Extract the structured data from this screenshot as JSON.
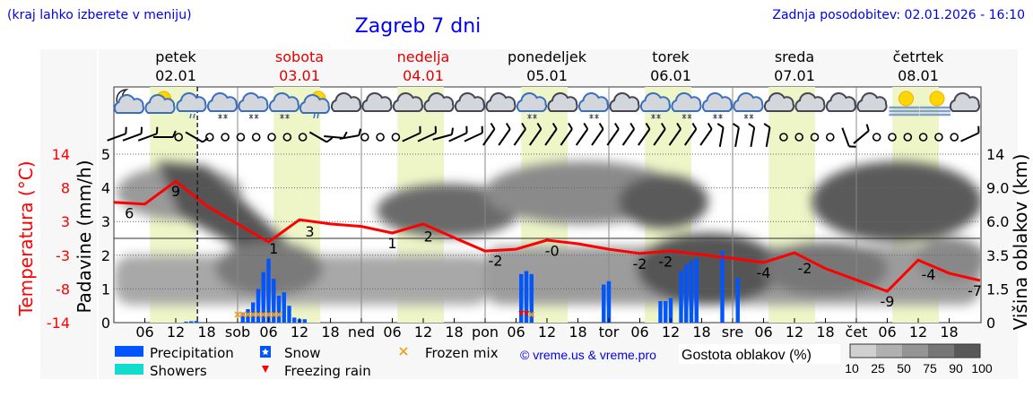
{
  "header": {
    "location_hint": "(kraj lahko izberete v meniju)",
    "title": "Zagreb 7 dni",
    "updated": "Zadnja posodobitev: 02.01.2026 - 16:10"
  },
  "days": [
    {
      "name": "petek",
      "date": "02.01",
      "color": "#000000"
    },
    {
      "name": "sobota",
      "date": "03.01",
      "color": "#e00000"
    },
    {
      "name": "nedelja",
      "date": "04.01",
      "color": "#e00000"
    },
    {
      "name": "ponedeljek",
      "date": "05.01",
      "color": "#000000"
    },
    {
      "name": "torek",
      "date": "06.01",
      "color": "#000000"
    },
    {
      "name": "sreda",
      "date": "07.01",
      "color": "#000000"
    },
    {
      "name": "četrtek",
      "date": "08.01",
      "color": "#000000"
    }
  ],
  "weather_icons": [
    "moon-cloud",
    "sun-cloud",
    "cloud-rain",
    "cloud-snow",
    "cloud-snow",
    "cloud-sleet",
    "sun-cloud-rain",
    "cloud",
    "cloud",
    "cloud",
    "cloud",
    "cloud",
    "cloud",
    "cloud-snow",
    "cloud",
    "cloud-snow",
    "cloud",
    "cloud-snow",
    "cloud-snow",
    "cloud-snow",
    "cloud-snow",
    "cloud",
    "cloud",
    "cloud",
    "cloud",
    "sun-fog",
    "sun-fog",
    "cloud"
  ],
  "wind": [
    -20,
    -20,
    -20,
    0,
    "calm",
    30,
    "calm",
    "calm",
    "calm",
    "calm",
    "calm",
    "calm",
    "calm",
    30,
    5,
    -10,
    "calm",
    "calm",
    "calm",
    -25,
    -25,
    -15,
    -25,
    -25,
    -55,
    -55,
    -55,
    -55,
    -55,
    -55,
    -55,
    -55,
    -55,
    -55,
    -55,
    -55,
    -55,
    -55,
    -55,
    -80,
    -80,
    -80,
    -80,
    "calm",
    "calm",
    "calm",
    "calm",
    70,
    -40,
    "calm",
    "calm",
    "calm",
    "calm",
    "calm",
    "calm",
    -25
  ],
  "chart_data": {
    "type": "line+bar",
    "x_axis": {
      "tick_labels": [
        "06",
        "12",
        "18",
        "sob",
        "06",
        "12",
        "18",
        "ned",
        "06",
        "12",
        "18",
        "pon",
        "06",
        "12",
        "18",
        "tor",
        "06",
        "12",
        "18",
        "sre",
        "06",
        "12",
        "18",
        "čet",
        "06",
        "12",
        "18"
      ]
    },
    "left_axis_temp": {
      "label": "Temperatura (°C)",
      "ticks": [
        "14",
        "8",
        "3",
        "-3",
        "-8",
        "-14"
      ],
      "range": [
        -14,
        14
      ]
    },
    "left_axis_precip": {
      "label": "Padavine (mm/h)",
      "ticks": [
        "0",
        "1",
        "2",
        "3",
        "4",
        "5"
      ],
      "range": [
        0,
        5
      ]
    },
    "right_axis_cloud": {
      "label": "Višina oblakov (km)",
      "ticks": [
        "0",
        "1.5",
        "3.5",
        "6.0",
        "9.0",
        "14"
      ]
    },
    "now_hour": 16.2,
    "daylight_hours": [
      7,
      16
    ],
    "temperature": {
      "step_hours": 6,
      "values": [
        6,
        5.7,
        9.5,
        5.4,
        2.4,
        -0.6,
        3.1,
        2.4,
        2,
        0.9,
        2.4,
        0.1,
        -2.1,
        -1.8,
        -0.3,
        -0.9,
        -1.8,
        -2.5,
        -2.1,
        -2.7,
        -3.3,
        -4,
        -2.4,
        -5,
        -6.9,
        -8.8,
        -3.6,
        -5.8,
        -7
      ]
    },
    "temperature_labels": [
      {
        "h": 3,
        "text": "6"
      },
      {
        "h": 12,
        "text": "9"
      },
      {
        "h": 31,
        "text": "1"
      },
      {
        "h": 38,
        "text": "3"
      },
      {
        "h": 54,
        "text": "1"
      },
      {
        "h": 61,
        "text": "2"
      },
      {
        "h": 74,
        "text": "-2"
      },
      {
        "h": 85,
        "text": "-0"
      },
      {
        "h": 102,
        "text": "-2"
      },
      {
        "h": 107,
        "text": "-2"
      },
      {
        "h": 126,
        "text": "-4"
      },
      {
        "h": 134,
        "text": "-2"
      },
      {
        "h": 150,
        "text": "-9"
      },
      {
        "h": 158,
        "text": "-4"
      },
      {
        "h": 168,
        "text": "-7"
      }
    ],
    "precipitation": [
      {
        "h": 14,
        "v": 0.03
      },
      {
        "h": 15,
        "v": 0.04
      },
      {
        "h": 16,
        "v": 0.05
      },
      {
        "h": 25,
        "v": 0.3
      },
      {
        "h": 26,
        "v": 0.4
      },
      {
        "h": 27,
        "v": 0.6
      },
      {
        "h": 28,
        "v": 1.0
      },
      {
        "h": 29,
        "v": 1.5
      },
      {
        "h": 30,
        "v": 1.9
      },
      {
        "h": 31,
        "v": 1.3
      },
      {
        "h": 32,
        "v": 0.8
      },
      {
        "h": 33,
        "v": 0.9
      },
      {
        "h": 34,
        "v": 0.5
      },
      {
        "h": 35,
        "v": 0.15
      },
      {
        "h": 36,
        "v": 0.1
      },
      {
        "h": 37,
        "v": 0.1
      },
      {
        "h": 79,
        "v": 1.44
      },
      {
        "h": 80,
        "v": 1.53
      },
      {
        "h": 81,
        "v": 1.44
      },
      {
        "h": 95,
        "v": 1.13
      },
      {
        "h": 96,
        "v": 1.23
      },
      {
        "h": 106,
        "v": 0.64
      },
      {
        "h": 107,
        "v": 0.64
      },
      {
        "h": 108,
        "v": 0.73
      },
      {
        "h": 110,
        "v": 1.53
      },
      {
        "h": 111,
        "v": 1.73
      },
      {
        "h": 112,
        "v": 1.83
      },
      {
        "h": 113,
        "v": 1.91
      },
      {
        "h": 118,
        "v": 2.13
      },
      {
        "h": 121,
        "v": 1.33
      }
    ],
    "frozen_mix_hours": [
      24,
      25,
      26,
      27,
      28,
      29,
      30,
      31,
      32,
      81
    ],
    "freezing_rain_hours": [
      79,
      80
    ],
    "series_colors": {
      "temperature": "#ff0000",
      "precipitation": "#0055ff",
      "showers": "#11ddcc"
    }
  },
  "legend": {
    "precipitation": "Precipitation",
    "showers": "Showers",
    "snow": "Snow",
    "freezing_rain": "Freezing rain",
    "frozen_mix": "Frozen mix",
    "credit": "© vreme.us & vreme.pro",
    "cloud_density_label": "Gostota oblakov (%)",
    "cloud_density_steps": [
      "10",
      "25",
      "50",
      "75",
      "90",
      "100"
    ],
    "cloud_density_colors": [
      "#d0d0d0",
      "#b0b0b0",
      "#949494",
      "#767676",
      "#585858"
    ]
  }
}
